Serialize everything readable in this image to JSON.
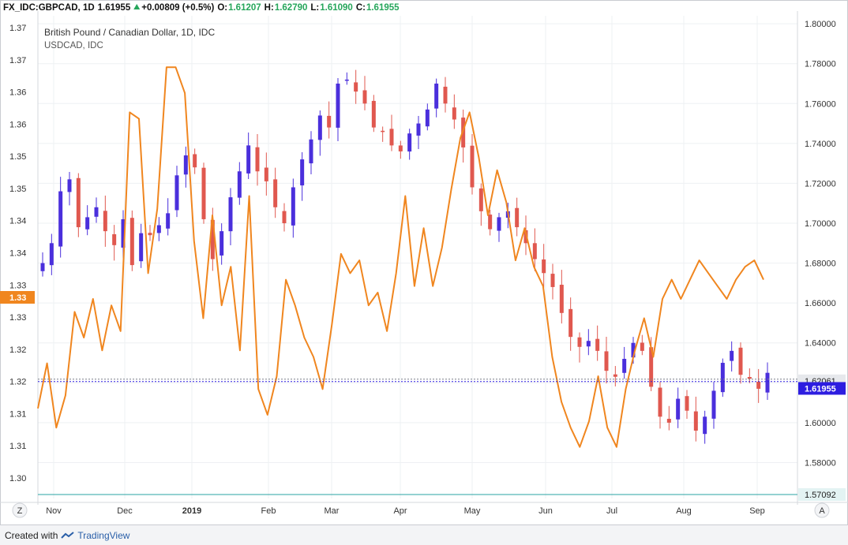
{
  "header": {
    "symbol": "FX_IDC:GBPCAD, 1D",
    "last": "1.61955",
    "change": "+0.00809 (+0.5%)",
    "o_label": "O:",
    "o": "1.61207",
    "h_label": "H:",
    "h": "1.62790",
    "l_label": "L:",
    "l": "1.61090",
    "c_label": "C:",
    "c": "1.61955"
  },
  "legend": {
    "main": "British Pound / Canadian Dollar, 1D, IDC",
    "overlay": "USDCAD, IDC"
  },
  "colors": {
    "up": "#4a2fdc",
    "down": "#e0584f",
    "overlay": "#f0861f",
    "green": "#26a65b",
    "last_tag": "#2d1de0",
    "bottom_line": "#2aa3a3"
  },
  "footer": {
    "created_with": "Created with",
    "brand": "TradingView"
  },
  "buttons": {
    "left": "Z",
    "right": "A"
  },
  "chart_data": {
    "type": "candlestick_with_overlay",
    "title": "British Pound / Canadian Dollar, 1D, IDC",
    "x_labels": [
      "Nov",
      "Dec",
      "2019",
      "Feb",
      "Mar",
      "Apr",
      "May",
      "Jun",
      "Jul",
      "Aug",
      "Sep"
    ],
    "right_axis": {
      "series": "GBPCAD",
      "range": [
        1.562,
        1.804
      ],
      "ticks": [
        "1.80000",
        "1.78000",
        "1.76000",
        "1.74000",
        "1.72000",
        "1.70000",
        "1.68000",
        "1.66000",
        "1.64000",
        "1.62000",
        "1.60000",
        "1.58000"
      ],
      "current_price": "1.61955",
      "reference_price": "1.62061",
      "low_marker": "1.57092"
    },
    "left_axis": {
      "series": "USDCAD",
      "range": [
        1.2975,
        1.3725
      ],
      "ticks": [
        "1.37",
        "1.37",
        "1.36",
        "1.36",
        "1.35",
        "1.35",
        "1.34",
        "1.34",
        "1.33",
        "1.33",
        "1.32",
        "1.32",
        "1.31",
        "1.31",
        "1.30"
      ],
      "current_value": "1.33"
    },
    "gbpcad_close_path": [
      1.68,
      1.69,
      1.716,
      1.722,
      1.698,
      1.703,
      1.708,
      1.696,
      1.689,
      1.702,
      1.679,
      1.695,
      1.694,
      1.699,
      1.705,
      1.724,
      1.734,
      1.728,
      1.702,
      1.682,
      1.696,
      1.713,
      1.726,
      1.739,
      1.726,
      1.721,
      1.708,
      1.7,
      1.718,
      1.732,
      1.742,
      1.754,
      1.748,
      1.77,
      1.772,
      1.766,
      1.76,
      1.748,
      1.746,
      1.739,
      1.736,
      1.745,
      1.75,
      1.757,
      1.77,
      1.76,
      1.752,
      1.738,
      1.718,
      1.706,
      1.697,
      1.703,
      1.706,
      1.698,
      1.69,
      1.682,
      1.675,
      1.668,
      1.655,
      1.643,
      1.638,
      1.641,
      1.636,
      1.626,
      1.623,
      1.632,
      1.64,
      1.636,
      1.618,
      1.603,
      1.6,
      1.612,
      1.606,
      1.596,
      1.603,
      1.616,
      1.63,
      1.636,
      1.624,
      1.622,
      1.617,
      1.625
    ],
    "usdcad_path": [
      1.3115,
      1.3185,
      1.3085,
      1.3135,
      1.3265,
      1.3225,
      1.3285,
      1.3205,
      1.3275,
      1.3235,
      1.3575,
      1.3565,
      1.3325,
      1.3425,
      1.3645,
      1.3645,
      1.3605,
      1.3375,
      1.3255,
      1.3415,
      1.3275,
      1.3335,
      1.3205,
      1.3445,
      1.3145,
      1.3105,
      1.3165,
      1.3315,
      1.3275,
      1.3225,
      1.3195,
      1.3145,
      1.3245,
      1.3355,
      1.3325,
      1.3345,
      1.3275,
      1.3295,
      1.3235,
      1.3325,
      1.3445,
      1.3305,
      1.3395,
      1.3305,
      1.3365,
      1.3455,
      1.3535,
      1.3575,
      1.3505,
      1.3415,
      1.3485,
      1.3435,
      1.3345,
      1.3395,
      1.3335,
      1.3305,
      1.3195,
      1.3125,
      1.3085,
      1.3055,
      1.3095,
      1.3165,
      1.3085,
      1.3055,
      1.3145,
      1.3205,
      1.3255,
      1.3195,
      1.3285,
      1.3315,
      1.3285,
      1.3315,
      1.3345,
      1.3325,
      1.3305,
      1.3285,
      1.3315,
      1.3335,
      1.3345,
      1.3315
    ]
  }
}
